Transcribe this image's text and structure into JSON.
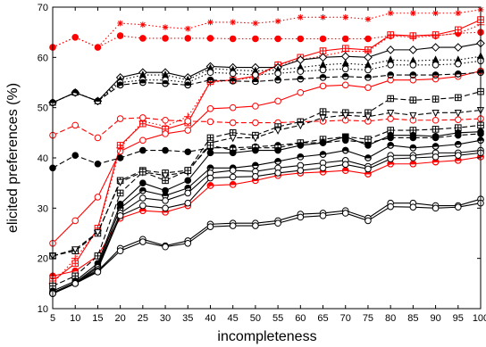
{
  "chart_data": {
    "type": "line",
    "title": "",
    "xlabel": "incompleteness",
    "ylabel": "elicited preferences (%)",
    "x": [
      5,
      10,
      15,
      20,
      25,
      30,
      35,
      40,
      45,
      50,
      55,
      60,
      65,
      70,
      75,
      80,
      85,
      90,
      95,
      100
    ],
    "xlim": [
      5,
      100
    ],
    "ylim": [
      10,
      70
    ],
    "yticks": [
      10,
      20,
      30,
      40,
      50,
      60,
      70
    ],
    "grid": false,
    "legend": "none",
    "series": [
      {
        "color": "#ff0000",
        "dash": "dotted",
        "marker": "star",
        "values": [
          62,
          64,
          62,
          66.8,
          66.5,
          66,
          65.7,
          67,
          67,
          66.8,
          67.2,
          68,
          68,
          68,
          67.6,
          68.8,
          68.8,
          68.8,
          68.8,
          69.5
        ]
      },
      {
        "color": "#ff0000",
        "dash": "dotted",
        "marker": "dot",
        "values": [
          62,
          64,
          62,
          64.3,
          63.8,
          63.8,
          63.8,
          63.8,
          63.7,
          63.7,
          63.7,
          63.7,
          63.7,
          63.7,
          63.7,
          64.3,
          64.3,
          64.3,
          64.8,
          65
        ]
      },
      {
        "color": "#ff0000",
        "dash": "solid",
        "marker": "square",
        "values": [
          15.5,
          19,
          26,
          42.5,
          46.8,
          45.7,
          47,
          55.2,
          55.5,
          56.3,
          58.5,
          60,
          61.3,
          61.8,
          61.5,
          64.5,
          64.3,
          64.5,
          65.5,
          67.5
        ]
      },
      {
        "color": "#ff0000",
        "dash": "solid",
        "marker": "circle",
        "values": [
          23,
          27.5,
          32.2,
          41.3,
          43.5,
          44.8,
          45.5,
          49.8,
          50,
          50.3,
          51.3,
          53,
          54.3,
          54.5,
          54,
          55.5,
          55.5,
          55.7,
          56.2,
          57.3
        ]
      },
      {
        "color": "#ff0000",
        "dash": "dotted",
        "marker": "plus",
        "values": [
          15,
          20,
          25.5,
          42,
          47.3,
          46.3,
          48.2,
          55,
          55.5,
          56,
          58.5,
          59.5,
          60.3,
          61.2,
          61.2,
          64.3,
          64,
          64.3,
          64.8,
          66.5
        ]
      },
      {
        "color": "#ff0000",
        "dash": "dashed",
        "marker": "circle",
        "values": [
          44.5,
          46.5,
          44,
          47.8,
          48,
          47.5,
          47.3,
          47.2,
          47,
          47,
          47,
          47.2,
          47.3,
          47.5,
          47.3,
          47.8,
          47.5,
          47.5,
          47.6,
          47.8
        ]
      },
      {
        "color": "#ff0000",
        "dash": "solid",
        "marker": "half-circle",
        "values": [
          16.5,
          17.5,
          20.5,
          28,
          29.5,
          29.2,
          30.5,
          34.5,
          34.7,
          35.5,
          36.5,
          37,
          37.2,
          37.5,
          36.8,
          38.8,
          38.8,
          39.2,
          39.5,
          40.2
        ]
      },
      {
        "color": "#000000",
        "dash": "solid",
        "marker": "diamond",
        "values": [
          51,
          53,
          51.3,
          56,
          57,
          57,
          56,
          58.2,
          58,
          58,
          58,
          59.5,
          60,
          60.2,
          60,
          61.5,
          61.5,
          62,
          62,
          62.8
        ]
      },
      {
        "color": "#000000",
        "dash": "dotted",
        "marker": "triangle",
        "values": [
          51,
          53,
          51.3,
          55.5,
          56.5,
          56.5,
          55.5,
          57.8,
          57.5,
          57.3,
          57.5,
          58,
          58.5,
          58.8,
          58.5,
          59.5,
          59.3,
          59.5,
          59.5,
          60.2
        ]
      },
      {
        "color": "#000000",
        "dash": "dotted",
        "marker": "open-circle",
        "values": [
          51,
          53,
          51.3,
          55,
          55.5,
          55.5,
          55,
          57,
          56.8,
          56.5,
          56.8,
          57.2,
          57.5,
          57.7,
          57.5,
          58.5,
          58.5,
          58.5,
          58.7,
          59.3
        ]
      },
      {
        "color": "#000000",
        "dash": "dashed",
        "marker": "half-circle",
        "values": [
          51,
          53,
          51.3,
          54.5,
          55,
          54.8,
          54.5,
          55.5,
          55.3,
          55.2,
          55.5,
          55.7,
          56,
          56.2,
          56,
          56.5,
          56.5,
          56.5,
          56.7,
          57
        ]
      },
      {
        "color": "#000000",
        "dash": "dashed",
        "marker": "square",
        "values": [
          20.5,
          21.5,
          25,
          35.5,
          37.5,
          37,
          37.5,
          44,
          45,
          44.5,
          46.2,
          47.2,
          49.2,
          49,
          49,
          51.8,
          51.5,
          51.7,
          52,
          53.2
        ]
      },
      {
        "color": "#000000",
        "dash": "dashed",
        "marker": "triangle-down",
        "values": [
          20.5,
          21.8,
          25.2,
          35.2,
          37.2,
          36.5,
          37.2,
          43,
          44,
          44,
          45.5,
          46.5,
          48,
          48.5,
          48.2,
          49,
          48.5,
          49,
          49,
          49.5
        ]
      },
      {
        "color": "#000000",
        "dash": "dashed",
        "marker": "dot",
        "values": [
          38,
          40.5,
          38.8,
          40,
          41.5,
          41.5,
          41.2,
          42,
          42,
          42.2,
          42.5,
          43,
          43,
          43.5,
          43,
          44,
          44,
          44,
          44.5,
          44.8
        ]
      },
      {
        "color": "#000000",
        "dash": "dashed",
        "marker": "square",
        "values": [
          14.5,
          16.5,
          20.5,
          33,
          37.2,
          35.5,
          37.5,
          42.5,
          41.5,
          42,
          42,
          43,
          43.7,
          44.2,
          43.7,
          45.5,
          45.5,
          45.7,
          46,
          46.5
        ]
      },
      {
        "color": "#000000",
        "dash": "solid",
        "marker": "dot",
        "values": [
          13.5,
          15.5,
          19,
          30.8,
          35,
          33.5,
          35.5,
          41,
          41,
          41.5,
          41.5,
          42.5,
          43,
          44.2,
          42.5,
          44.5,
          44.5,
          44.3,
          45,
          45.2
        ]
      },
      {
        "color": "#000000",
        "dash": "solid",
        "marker": "half-circle",
        "values": [
          13.2,
          15.2,
          18.5,
          30,
          33.5,
          32.5,
          34,
          38,
          38,
          38.5,
          39.3,
          40.2,
          40.7,
          41.5,
          40,
          42.5,
          42,
          42.3,
          42.7,
          43.5
        ]
      },
      {
        "color": "#000000",
        "dash": "solid",
        "marker": "open-circle",
        "values": [
          13,
          15,
          18.2,
          29,
          32,
          31.5,
          33,
          37,
          37.5,
          37.3,
          38,
          38.5,
          39,
          39.5,
          38.3,
          40.5,
          40.5,
          41,
          41,
          41.5
        ]
      },
      {
        "color": "#000000",
        "dash": "solid",
        "marker": "open-circle",
        "values": [
          13,
          15,
          17.8,
          28.5,
          30.5,
          30,
          31,
          36,
          36.2,
          36.3,
          37,
          37.5,
          38,
          38.7,
          37.8,
          39.8,
          40,
          40.2,
          40.5,
          41
        ]
      },
      {
        "color": "#000000",
        "dash": "solid",
        "marker": "circle",
        "values": [
          13,
          15,
          17.5,
          22,
          23.8,
          22.5,
          23.5,
          26.8,
          27,
          27,
          27.5,
          28.8,
          29,
          29.5,
          28,
          31,
          31,
          30.5,
          30.5,
          31.8
        ]
      },
      {
        "color": "#000000",
        "dash": "solid",
        "marker": "open-circle",
        "values": [
          13,
          15,
          17.3,
          21.5,
          23.3,
          22.3,
          23,
          26.3,
          26.5,
          26.5,
          27,
          28.2,
          28.5,
          29,
          27.5,
          30.3,
          30.2,
          30,
          30.2,
          31
        ]
      }
    ]
  }
}
